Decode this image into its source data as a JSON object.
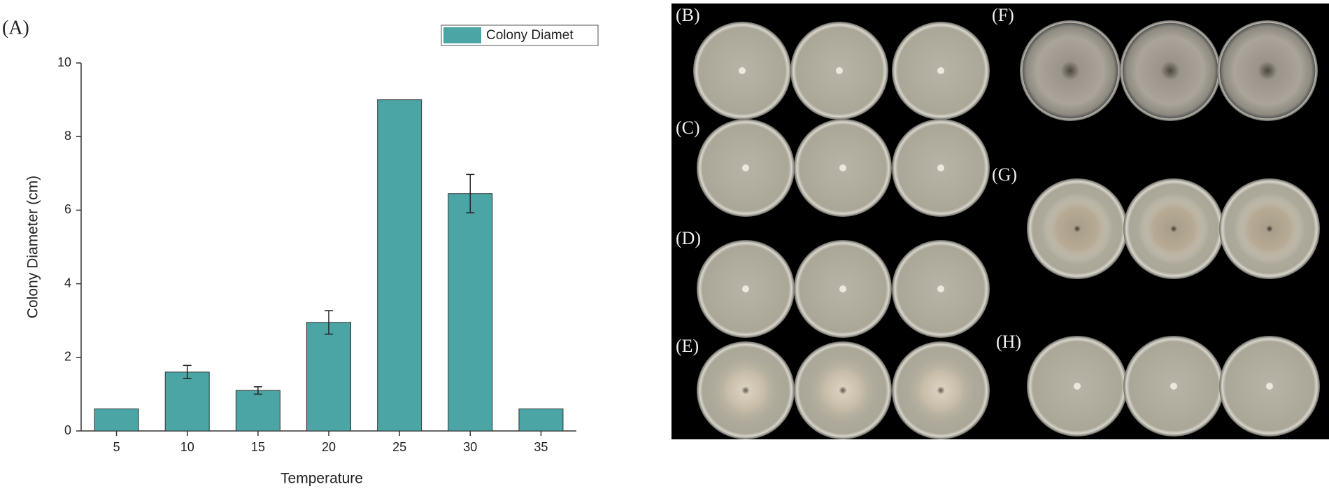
{
  "chart_data": {
    "type": "bar",
    "panel_label": "(A)",
    "xlabel": "Temperature",
    "ylabel": "Colony Diameter (cm)",
    "categories": [
      "5",
      "10",
      "15",
      "20",
      "25",
      "30",
      "35"
    ],
    "series": [
      {
        "name": "Colony Diamet",
        "color": "#4aa5a4",
        "values": [
          0.6,
          1.6,
          1.1,
          2.95,
          9.0,
          6.45,
          0.6
        ],
        "errors": [
          null,
          0.18,
          0.1,
          0.32,
          null,
          0.52,
          null
        ]
      }
    ],
    "ylim": [
      0,
      10
    ],
    "yticks": [
      0,
      2,
      4,
      6,
      8,
      10
    ],
    "grid": false,
    "legend": "top-right"
  },
  "photo_panels": [
    "(B)",
    "(C)",
    "(D)",
    "(E)",
    "(F)",
    "(G)",
    "(H)"
  ]
}
